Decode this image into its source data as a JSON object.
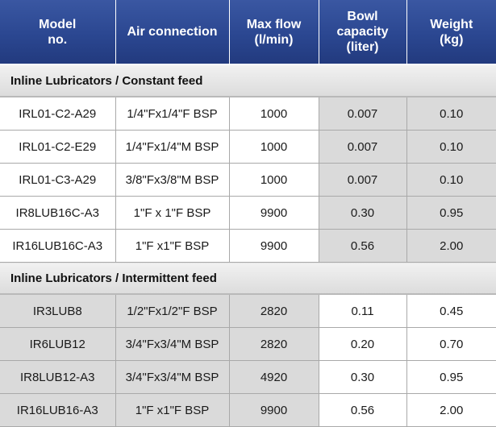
{
  "headers": {
    "model": [
      "Model",
      "no."
    ],
    "air": [
      "Air connection"
    ],
    "flow": [
      "Max flow",
      "(l/min)"
    ],
    "bowl": [
      "Bowl",
      "capacity",
      "(liter)"
    ],
    "weight": [
      "Weight",
      "(kg)"
    ]
  },
  "sections": [
    {
      "title": "Inline Lubricators / Constant feed",
      "rows": [
        {
          "model": "IRL01-C2-A29",
          "air": "1/4\"Fx1/4\"F BSP",
          "flow": "1000",
          "bowl": "0.007",
          "weight": "0.10"
        },
        {
          "model": "IRL01-C2-E29",
          "air": "1/4\"Fx1/4\"M BSP",
          "flow": "1000",
          "bowl": "0.007",
          "weight": "0.10"
        },
        {
          "model": "IRL01-C3-A29",
          "air": "3/8\"Fx3/8\"M BSP",
          "flow": "1000",
          "bowl": "0.007",
          "weight": "0.10"
        },
        {
          "model": "IR8LUB16C-A3",
          "air": "1\"F x 1\"F BSP",
          "flow": "9900",
          "bowl": "0.30",
          "weight": "0.95"
        },
        {
          "model": "IR16LUB16C-A3",
          "air": "1\"F x1\"F BSP",
          "flow": "9900",
          "bowl": "0.56",
          "weight": "2.00"
        }
      ]
    },
    {
      "title": "Inline Lubricators / Intermittent feed",
      "rows": [
        {
          "model": "IR3LUB8",
          "air": "1/2\"Fx1/2\"F BSP",
          "flow": "2820",
          "bowl": "0.11",
          "weight": "0.45"
        },
        {
          "model": "IR6LUB12",
          "air": "3/4\"Fx3/4\"M BSP",
          "flow": "2820",
          "bowl": "0.20",
          "weight": "0.70"
        },
        {
          "model": "IR8LUB12-A3",
          "air": "3/4\"Fx3/4\"M BSP",
          "flow": "4920",
          "bowl": "0.30",
          "weight": "0.95"
        },
        {
          "model": "IR16LUB16-A3",
          "air": "1\"F x1\"F BSP",
          "flow": "9900",
          "bowl": "0.56",
          "weight": "2.00"
        }
      ]
    }
  ],
  "colors": {
    "header_bg": "#2b4791",
    "header_text": "#ffffff",
    "section_bg": "#e4e4e4",
    "shaded_cell_bg": "#dadada"
  }
}
